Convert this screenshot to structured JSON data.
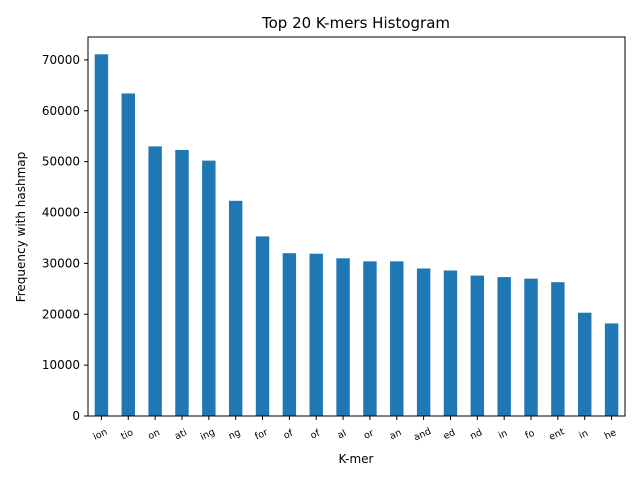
{
  "chart_data": {
    "type": "bar",
    "title": "Top 20 K-mers Histogram",
    "xlabel": "K-mer",
    "ylabel": "Frequency with hashmap",
    "categories": [
      "ion",
      "tio",
      "on",
      "ati",
      "ing",
      "ng",
      "for",
      "of",
      "of",
      "al",
      "or",
      "an",
      "and",
      "ed",
      "nd",
      "in",
      "fo",
      "ent",
      "in",
      "he"
    ],
    "values": [
      71100,
      63400,
      53000,
      52300,
      50200,
      42300,
      35300,
      32000,
      31900,
      31000,
      30400,
      30400,
      29000,
      28600,
      27600,
      27300,
      27000,
      26300,
      20300,
      18200
    ],
    "ylim": [
      0,
      74500
    ],
    "yticks": [
      0,
      10000,
      20000,
      30000,
      40000,
      50000,
      60000,
      70000
    ],
    "bar_color": "#1f77b4",
    "grid": false,
    "legend": "none"
  }
}
